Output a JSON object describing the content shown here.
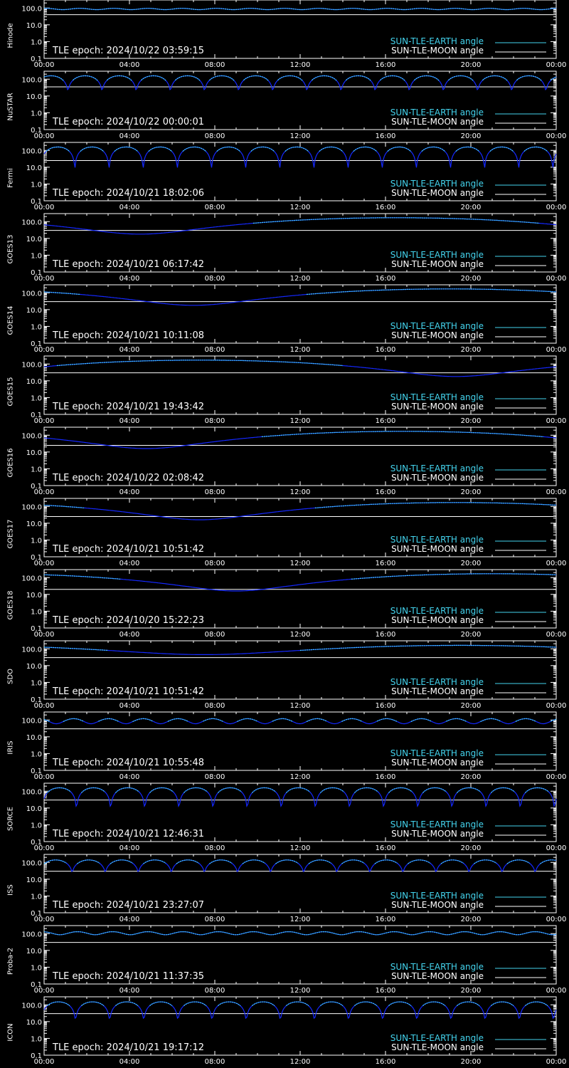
{
  "colors": {
    "background": "#000000",
    "axes": "#ffffff",
    "sun_earth_light": "#44d4ee",
    "sun_earth_dark": "#1428ff",
    "sun_moon": "#ffffff"
  },
  "legend": {
    "earth_label": "SUN-TLE-EARTH angle",
    "moon_label": "SUN-TLE-MOON angle"
  },
  "y_ticks": [
    "100.0",
    "10.0",
    "1.0",
    "0.1"
  ],
  "x_ticks": [
    "00:00",
    "04:00",
    "08:00",
    "12:00",
    "16:00",
    "20:00",
    "00:00"
  ],
  "chart_data": [
    {
      "type": "line",
      "satellite": "Hinode",
      "epoch": "TLE epoch: 2024/10/22 03:59:15",
      "xlim": [
        0,
        24
      ],
      "ylim": [
        0.1,
        300
      ],
      "y_scale": "log",
      "earth_model": {
        "kind": "osc",
        "base": 88,
        "amp": 8,
        "period_h": 1.6,
        "phase": 0.2
      },
      "moon": {
        "start": 40,
        "end": 40
      }
    },
    {
      "type": "line",
      "satellite": "NuSTAR",
      "epoch": "TLE epoch: 2024/10/22 00:00:01",
      "xlim": [
        0,
        24
      ],
      "ylim": [
        0.1,
        300
      ],
      "y_scale": "log",
      "earth_model": {
        "kind": "arch",
        "max": 160,
        "min": 15,
        "period_h": 1.6,
        "phase": 0.3
      },
      "moon": {
        "start": 35,
        "end": 35
      }
    },
    {
      "type": "line",
      "satellite": "Fermi",
      "epoch": "TLE epoch: 2024/10/21 18:02:06",
      "xlim": [
        0,
        24
      ],
      "ylim": [
        0.1,
        300
      ],
      "y_scale": "log",
      "earth_model": {
        "kind": "arch",
        "max": 160,
        "min": 4,
        "period_h": 1.6,
        "phase": 0.1
      },
      "moon": {
        "start": 25,
        "end": 25
      }
    },
    {
      "type": "line",
      "satellite": "GOES13",
      "epoch": "TLE epoch: 2024/10/21 06:17:42",
      "xlim": [
        0,
        24
      ],
      "ylim": [
        0.1,
        300
      ],
      "y_scale": "log",
      "earth_model": {
        "kind": "daily",
        "min": 18,
        "max": 170,
        "t_min": 4.5,
        "v_start": 60
      },
      "moon": {
        "start": 30,
        "end": 30
      }
    },
    {
      "type": "line",
      "satellite": "GOES14",
      "epoch": "TLE epoch: 2024/10/21 10:11:08",
      "xlim": [
        0,
        24
      ],
      "ylim": [
        0.1,
        300
      ],
      "y_scale": "log",
      "earth_model": {
        "kind": "daily",
        "min": 18,
        "max": 170,
        "t_min": 7.0,
        "v_start": 110
      },
      "moon": {
        "start": 30,
        "end": 30
      }
    },
    {
      "type": "line",
      "satellite": "GOES15",
      "epoch": "TLE epoch: 2024/10/21 19:43:42",
      "xlim": [
        0,
        24
      ],
      "ylim": [
        0.1,
        300
      ],
      "y_scale": "log",
      "earth_model": {
        "kind": "daily",
        "min": 18,
        "max": 170,
        "t_min": 19.3,
        "v_start": 80
      },
      "moon": {
        "start": 30,
        "end": 30
      }
    },
    {
      "type": "line",
      "satellite": "GOES16",
      "epoch": "TLE epoch: 2024/10/22 02:08:42",
      "xlim": [
        0,
        24
      ],
      "ylim": [
        0.1,
        300
      ],
      "y_scale": "log",
      "earth_model": {
        "kind": "daily",
        "min": 16,
        "max": 170,
        "t_min": 4.8,
        "v_start": 60
      },
      "moon": {
        "start": 25,
        "end": 25
      }
    },
    {
      "type": "line",
      "satellite": "GOES17",
      "epoch": "TLE epoch: 2024/10/21 10:51:42",
      "xlim": [
        0,
        24
      ],
      "ylim": [
        0.1,
        300
      ],
      "y_scale": "log",
      "earth_model": {
        "kind": "daily",
        "min": 16,
        "max": 170,
        "t_min": 7.3,
        "v_start": 100
      },
      "moon": {
        "start": 25,
        "end": 25
      }
    },
    {
      "type": "line",
      "satellite": "GOES18",
      "epoch": "TLE epoch: 2024/10/20 15:22:23",
      "xlim": [
        0,
        24
      ],
      "ylim": [
        0.1,
        300
      ],
      "y_scale": "log",
      "earth_model": {
        "kind": "daily",
        "min": 16,
        "max": 170,
        "t_min": 9.0,
        "v_start": 140
      },
      "moon": {
        "start": 20,
        "end": 20
      }
    },
    {
      "type": "line",
      "satellite": "SDO",
      "epoch": "TLE epoch: 2024/10/21 10:51:42",
      "xlim": [
        0,
        24
      ],
      "ylim": [
        0.1,
        300
      ],
      "y_scale": "log",
      "earth_model": {
        "kind": "daily",
        "min": 45,
        "max": 160,
        "t_min": 7.5,
        "v_start": 130
      },
      "moon": {
        "start": 30,
        "end": 30
      }
    },
    {
      "type": "line",
      "satellite": "IRIS",
      "epoch": "TLE epoch: 2024/10/21 10:55:48",
      "xlim": [
        0,
        24
      ],
      "ylim": [
        0.1,
        300
      ],
      "y_scale": "log",
      "earth_model": {
        "kind": "osc",
        "base": 90,
        "amp": 30,
        "period_h": 1.63,
        "phase": 0.4
      },
      "moon": {
        "start": 30,
        "end": 30
      }
    },
    {
      "type": "line",
      "satellite": "SORCE",
      "epoch": "TLE epoch: 2024/10/21 12:46:31",
      "xlim": [
        0,
        24
      ],
      "ylim": [
        0.1,
        300
      ],
      "y_scale": "log",
      "earth_model": {
        "kind": "arch",
        "max": 160,
        "min": 3,
        "period_h": 1.6,
        "phase": 0.05
      },
      "moon": {
        "start": 30,
        "end": 30
      }
    },
    {
      "type": "line",
      "satellite": "ISS",
      "epoch": "TLE epoch: 2024/10/21 23:27:07",
      "xlim": [
        0,
        24
      ],
      "ylim": [
        0.1,
        300
      ],
      "y_scale": "log",
      "earth_model": {
        "kind": "arch",
        "max": 140,
        "min": 22,
        "period_h": 1.55,
        "phase": 0.15
      },
      "moon": {
        "start": 30,
        "end": 30
      }
    },
    {
      "type": "line",
      "satellite": "Proba-2",
      "epoch": "TLE epoch: 2024/10/21 11:37:35",
      "xlim": [
        0,
        24
      ],
      "ylim": [
        0.1,
        300
      ],
      "y_scale": "log",
      "earth_model": {
        "kind": "osc",
        "base": 108,
        "amp": 22,
        "period_h": 1.65,
        "phase": 0.3
      },
      "moon": {
        "start": 30,
        "end": 30
      }
    },
    {
      "type": "line",
      "satellite": "ICON",
      "epoch": "TLE epoch: 2024/10/21 19:17:12",
      "xlim": [
        0,
        24
      ],
      "ylim": [
        0.1,
        300
      ],
      "y_scale": "log",
      "earth_model": {
        "kind": "arch",
        "max": 150,
        "min": 6,
        "period_h": 1.6,
        "phase": 0.08
      },
      "moon": {
        "start": 30,
        "end": 30
      }
    }
  ]
}
